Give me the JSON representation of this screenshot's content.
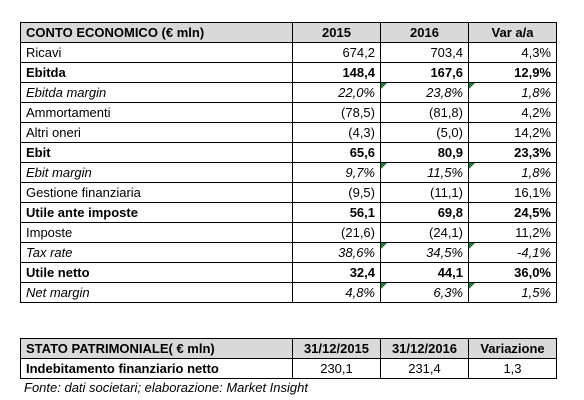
{
  "income_statement": {
    "headers": [
      "CONTO ECONOMICO (€ mln)",
      "2015",
      "2016",
      "Var a/a"
    ],
    "rows": [
      {
        "label": "Ricavi",
        "v2015": "674,2",
        "v2016": "703,4",
        "var": "4,3%",
        "style": "normal"
      },
      {
        "label": "Ebitda",
        "v2015": "148,4",
        "v2016": "167,6",
        "var": "12,9%",
        "style": "bold"
      },
      {
        "label": "Ebitda margin",
        "v2015": "22,0%",
        "v2016": "23,8%",
        "var": "1,8%",
        "style": "italic"
      },
      {
        "label": "Ammortamenti",
        "v2015": "(78,5)",
        "v2016": "(81,8)",
        "var": "4,2%",
        "style": "normal"
      },
      {
        "label": "Altri oneri",
        "v2015": "(4,3)",
        "v2016": "(5,0)",
        "var": "14,2%",
        "style": "normal"
      },
      {
        "label": "Ebit",
        "v2015": "65,6",
        "v2016": "80,9",
        "var": "23,3%",
        "style": "bold"
      },
      {
        "label": "Ebit margin",
        "v2015": "9,7%",
        "v2016": "11,5%",
        "var": "1,8%",
        "style": "italic"
      },
      {
        "label": "Gestione finanziaria",
        "v2015": "(9,5)",
        "v2016": "(11,1)",
        "var": "16,1%",
        "style": "normal"
      },
      {
        "label": "Utile ante imposte",
        "v2015": "56,1",
        "v2016": "69,8",
        "var": "24,5%",
        "style": "bold"
      },
      {
        "label": "Imposte",
        "v2015": "(21,6)",
        "v2016": "(24,1)",
        "var": "11,2%",
        "style": "normal"
      },
      {
        "label": "Tax rate",
        "v2015": "38,6%",
        "v2016": "34,5%",
        "var": "-4,1%",
        "style": "italic"
      },
      {
        "label": "Utile netto",
        "v2015": "32,4",
        "v2016": "44,1",
        "var": "36,0%",
        "style": "bold"
      },
      {
        "label": "Net margin",
        "v2015": "4,8%",
        "v2016": "6,3%",
        "var": "1,5%",
        "style": "italic"
      }
    ]
  },
  "balance_sheet": {
    "headers": [
      "STATO PATRIMONIALE( € mln)",
      "31/12/2015",
      "31/12/2016",
      "Variazione"
    ],
    "rows": [
      {
        "label": "Indebitamento finanziario netto",
        "v2015": "230,1",
        "v2016": "231,4",
        "var": "1,3",
        "style": "bold-label"
      }
    ]
  },
  "source_note": "Fonte: dati societari; elaborazione: Market Insight",
  "colors": {
    "header_background": "#d9d9d9",
    "border": "#000000",
    "flag_marker": "#1e7b34"
  }
}
